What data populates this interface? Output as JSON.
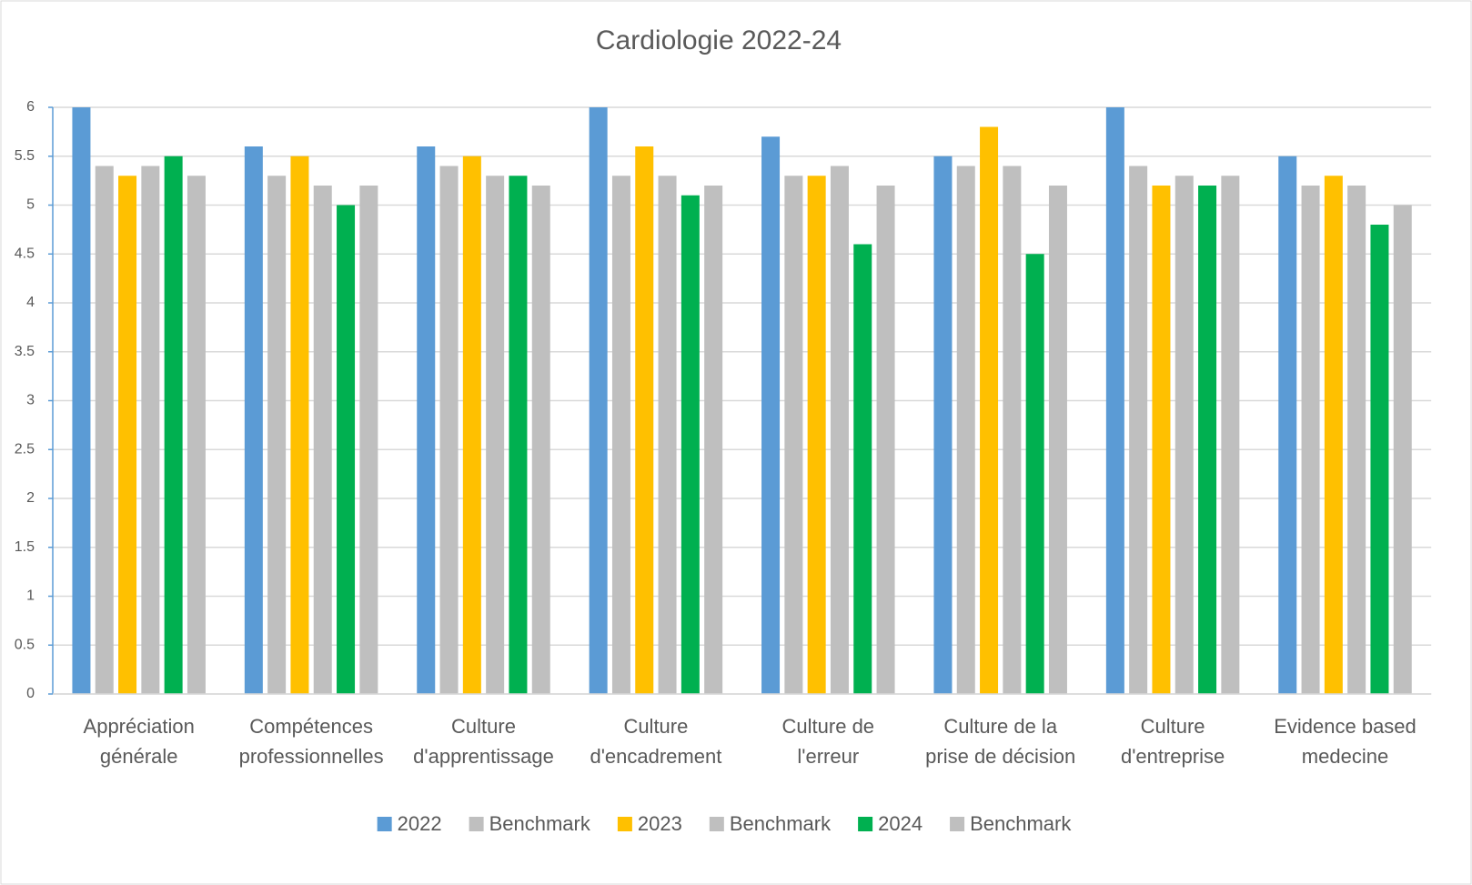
{
  "chart_data": {
    "type": "bar",
    "title": "Cardiologie 2022-24",
    "categories": [
      [
        "Appréciation",
        "générale"
      ],
      [
        "Compétences",
        "professionnelles"
      ],
      [
        "Culture",
        "d'apprentissage"
      ],
      [
        "Culture",
        "d'encadrement"
      ],
      [
        "Culture de",
        "l'erreur"
      ],
      [
        "Culture de la",
        "prise de décision"
      ],
      [
        "Culture",
        "d'entreprise"
      ],
      [
        "Evidence based",
        "medecine"
      ]
    ],
    "series": [
      {
        "name": "2022",
        "color": "#5b9bd5",
        "values": [
          6,
          5.6,
          5.6,
          6,
          5.7,
          5.5,
          6,
          5.5
        ]
      },
      {
        "name": "Benchmark",
        "color": "#bfbfbf",
        "values": [
          5.4,
          5.3,
          5.4,
          5.3,
          5.3,
          5.4,
          5.4,
          5.2
        ]
      },
      {
        "name": "2023",
        "color": "#ffc000",
        "values": [
          5.3,
          5.5,
          5.5,
          5.6,
          5.3,
          5.8,
          5.2,
          5.3
        ]
      },
      {
        "name": "Benchmark",
        "color": "#bfbfbf",
        "values": [
          5.4,
          5.2,
          5.3,
          5.3,
          5.4,
          5.4,
          5.3,
          5.2
        ]
      },
      {
        "name": "2024",
        "color": "#00b050",
        "values": [
          5.5,
          5.0,
          5.3,
          5.1,
          4.6,
          4.5,
          5.2,
          4.8
        ]
      },
      {
        "name": "Benchmark",
        "color": "#bfbfbf",
        "values": [
          5.3,
          5.2,
          5.2,
          5.2,
          5.2,
          5.2,
          5.3,
          5.0
        ]
      }
    ],
    "ylim": [
      0,
      6
    ],
    "yticks": [
      0,
      0.5,
      1,
      1.5,
      2,
      2.5,
      3,
      3.5,
      4,
      4.5,
      5,
      5.5,
      6
    ],
    "grid": true,
    "legend": "bottom"
  }
}
